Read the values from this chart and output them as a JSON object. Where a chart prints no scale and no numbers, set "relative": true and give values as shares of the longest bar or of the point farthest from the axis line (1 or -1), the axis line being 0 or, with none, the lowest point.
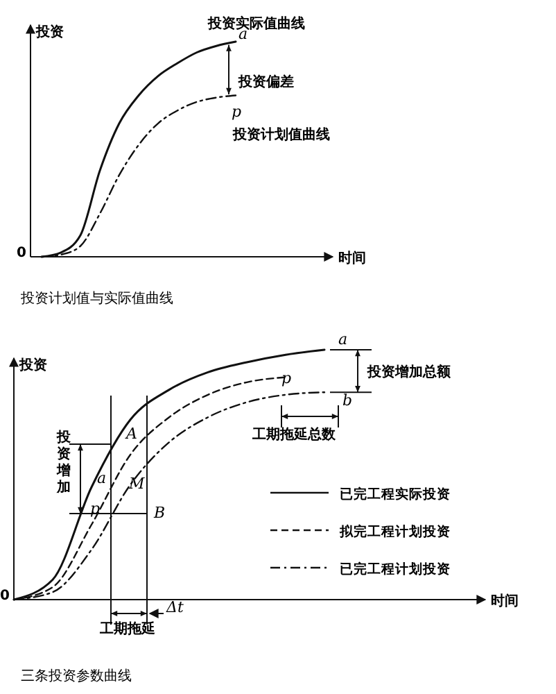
{
  "chart_data": [
    {
      "type": "line",
      "title": "投资计划值与实际值曲线",
      "xlabel": "时间",
      "ylabel": "投资",
      "relative": true,
      "legend": false,
      "categories": [
        null,
        null,
        null,
        null,
        null,
        null,
        null,
        null,
        null,
        null,
        null,
        null,
        null,
        null,
        null,
        null
      ],
      "series": [
        {
          "name": "投资实际值曲线",
          "color": "#111111",
          "line_style": "solid",
          "values": [
            0,
            0.02,
            0.1,
            0.4,
            0.62,
            0.75,
            0.84,
            0.9,
            0.95,
            0.98,
            1.0,
            null,
            null,
            null,
            null,
            null
          ]
        },
        {
          "name": "投资计划值曲线",
          "color": "#111111",
          "line_style": "dashdot",
          "values": [
            0,
            0.01,
            0.05,
            0.2,
            0.38,
            0.52,
            0.62,
            0.68,
            0.72,
            0.74,
            0.75,
            null,
            null,
            null,
            null,
            null
          ]
        }
      ],
      "annotations": [
        "a",
        "投资偏差",
        "p",
        "0"
      ]
    },
    {
      "type": "line",
      "title": "三条投资参数曲线",
      "xlabel": "时间",
      "ylabel": "投资",
      "relative": true,
      "legend": "bottom right",
      "categories": [
        null,
        null,
        null,
        null,
        null,
        null,
        null,
        null,
        null,
        null,
        null,
        null,
        null
      ],
      "series": [
        {
          "name": "已完工程实际投资",
          "color": "#111111",
          "line_style": "solid",
          "values": [
            0,
            0.08,
            0.45,
            0.72,
            0.84,
            0.91,
            0.95,
            0.98,
            1.0,
            null,
            null,
            null,
            null
          ]
        },
        {
          "name": "拟完工程计划投资",
          "color": "#111111",
          "line_style": "dashed",
          "values": [
            0,
            0.05,
            0.3,
            0.58,
            0.73,
            0.82,
            0.87,
            0.89,
            null,
            null,
            null,
            null,
            null
          ]
        },
        {
          "name": "已完工程计划投资",
          "color": "#111111",
          "line_style": "dashdot",
          "values": [
            0,
            0.03,
            0.2,
            0.46,
            0.63,
            0.73,
            0.79,
            0.82,
            0.83,
            null,
            null,
            null,
            null
          ]
        }
      ],
      "annotations": [
        "a",
        "p",
        "b",
        "投资增加总额",
        "工期拖延总数",
        "投资增加",
        "A",
        "M",
        "B",
        "a",
        "p",
        "工期拖延",
        "Δt",
        "0"
      ]
    }
  ]
}
